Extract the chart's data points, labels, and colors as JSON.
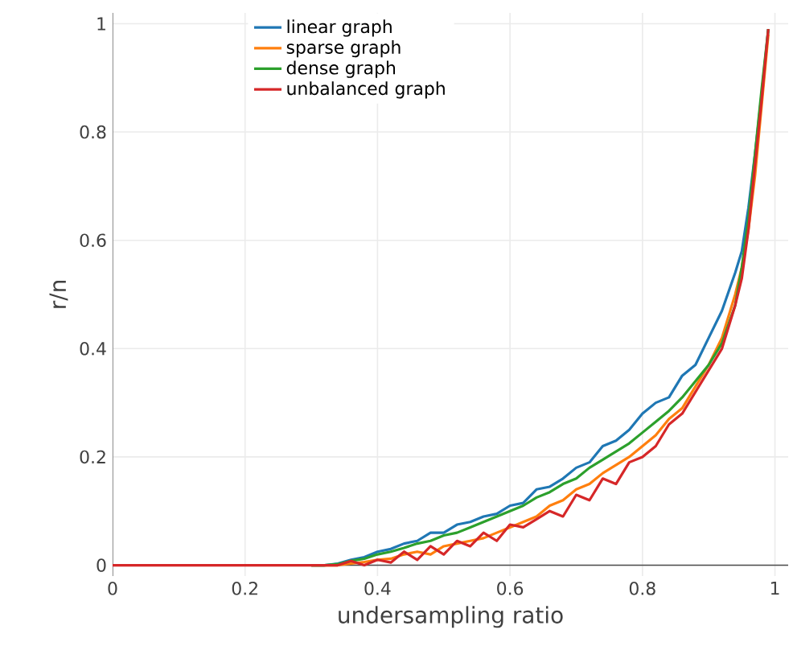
{
  "chart_data": {
    "type": "line",
    "xlabel": "undersampling ratio",
    "ylabel": "r/n",
    "x": [
      0,
      0.1,
      0.2,
      0.3,
      0.32,
      0.34,
      0.36,
      0.38,
      0.4,
      0.42,
      0.44,
      0.46,
      0.48,
      0.5,
      0.52,
      0.54,
      0.56,
      0.58,
      0.6,
      0.62,
      0.64,
      0.66,
      0.68,
      0.7,
      0.72,
      0.74,
      0.76,
      0.78,
      0.8,
      0.82,
      0.84,
      0.86,
      0.88,
      0.9,
      0.92,
      0.94,
      0.95,
      0.96,
      0.97,
      0.98,
      0.99
    ],
    "series": [
      {
        "name": "linear graph",
        "color": "#1f77b4",
        "values": [
          null,
          null,
          null,
          0,
          0,
          0.003,
          0.01,
          0.015,
          0.025,
          0.03,
          0.04,
          0.045,
          0.06,
          0.06,
          0.075,
          0.08,
          0.09,
          0.095,
          0.11,
          0.115,
          0.14,
          0.145,
          0.16,
          0.18,
          0.19,
          0.22,
          0.23,
          0.25,
          0.28,
          0.3,
          0.31,
          0.35,
          0.37,
          0.42,
          0.47,
          0.54,
          0.58,
          0.66,
          0.76,
          0.87,
          0.99
        ]
      },
      {
        "name": "sparse graph",
        "color": "#ff7f0e",
        "values": [
          null,
          null,
          null,
          0,
          0,
          0,
          0.003,
          0.006,
          0.01,
          0.012,
          0.02,
          0.025,
          0.02,
          0.035,
          0.04,
          0.045,
          0.05,
          0.06,
          0.07,
          0.08,
          0.09,
          0.11,
          0.12,
          0.14,
          0.15,
          0.17,
          0.185,
          0.2,
          0.22,
          0.24,
          0.27,
          0.29,
          0.33,
          0.37,
          0.42,
          0.5,
          0.55,
          0.62,
          0.72,
          0.85,
          0.98
        ]
      },
      {
        "name": "dense graph",
        "color": "#2ca02c",
        "values": [
          null,
          null,
          null,
          0,
          0,
          0.002,
          0.008,
          0.012,
          0.02,
          0.025,
          0.032,
          0.04,
          0.045,
          0.055,
          0.06,
          0.07,
          0.08,
          0.09,
          0.1,
          0.11,
          0.125,
          0.135,
          0.15,
          0.16,
          0.18,
          0.195,
          0.21,
          0.225,
          0.245,
          0.265,
          0.285,
          0.31,
          0.34,
          0.37,
          0.41,
          0.48,
          0.55,
          0.64,
          0.76,
          0.88,
          0.99
        ]
      },
      {
        "name": "unbalanced graph",
        "color": "#d62728",
        "values": [
          0,
          0,
          0,
          0,
          0,
          0,
          0.008,
          0,
          0.01,
          0.005,
          0.025,
          0.01,
          0.035,
          0.02,
          0.045,
          0.035,
          0.06,
          0.045,
          0.075,
          0.07,
          0.085,
          0.1,
          0.09,
          0.13,
          0.12,
          0.16,
          0.15,
          0.19,
          0.2,
          0.22,
          0.26,
          0.28,
          0.32,
          0.36,
          0.4,
          0.48,
          0.53,
          0.62,
          0.74,
          0.86,
          0.99
        ]
      }
    ],
    "xlim": [
      0,
      1.02
    ],
    "ylim": [
      -0.02,
      1.02
    ],
    "xticks": [
      0,
      0.2,
      0.4,
      0.6,
      0.8,
      1
    ],
    "yticks": [
      0,
      0.2,
      0.4,
      0.6,
      0.8,
      1
    ],
    "grid": true,
    "legend": "top left"
  }
}
